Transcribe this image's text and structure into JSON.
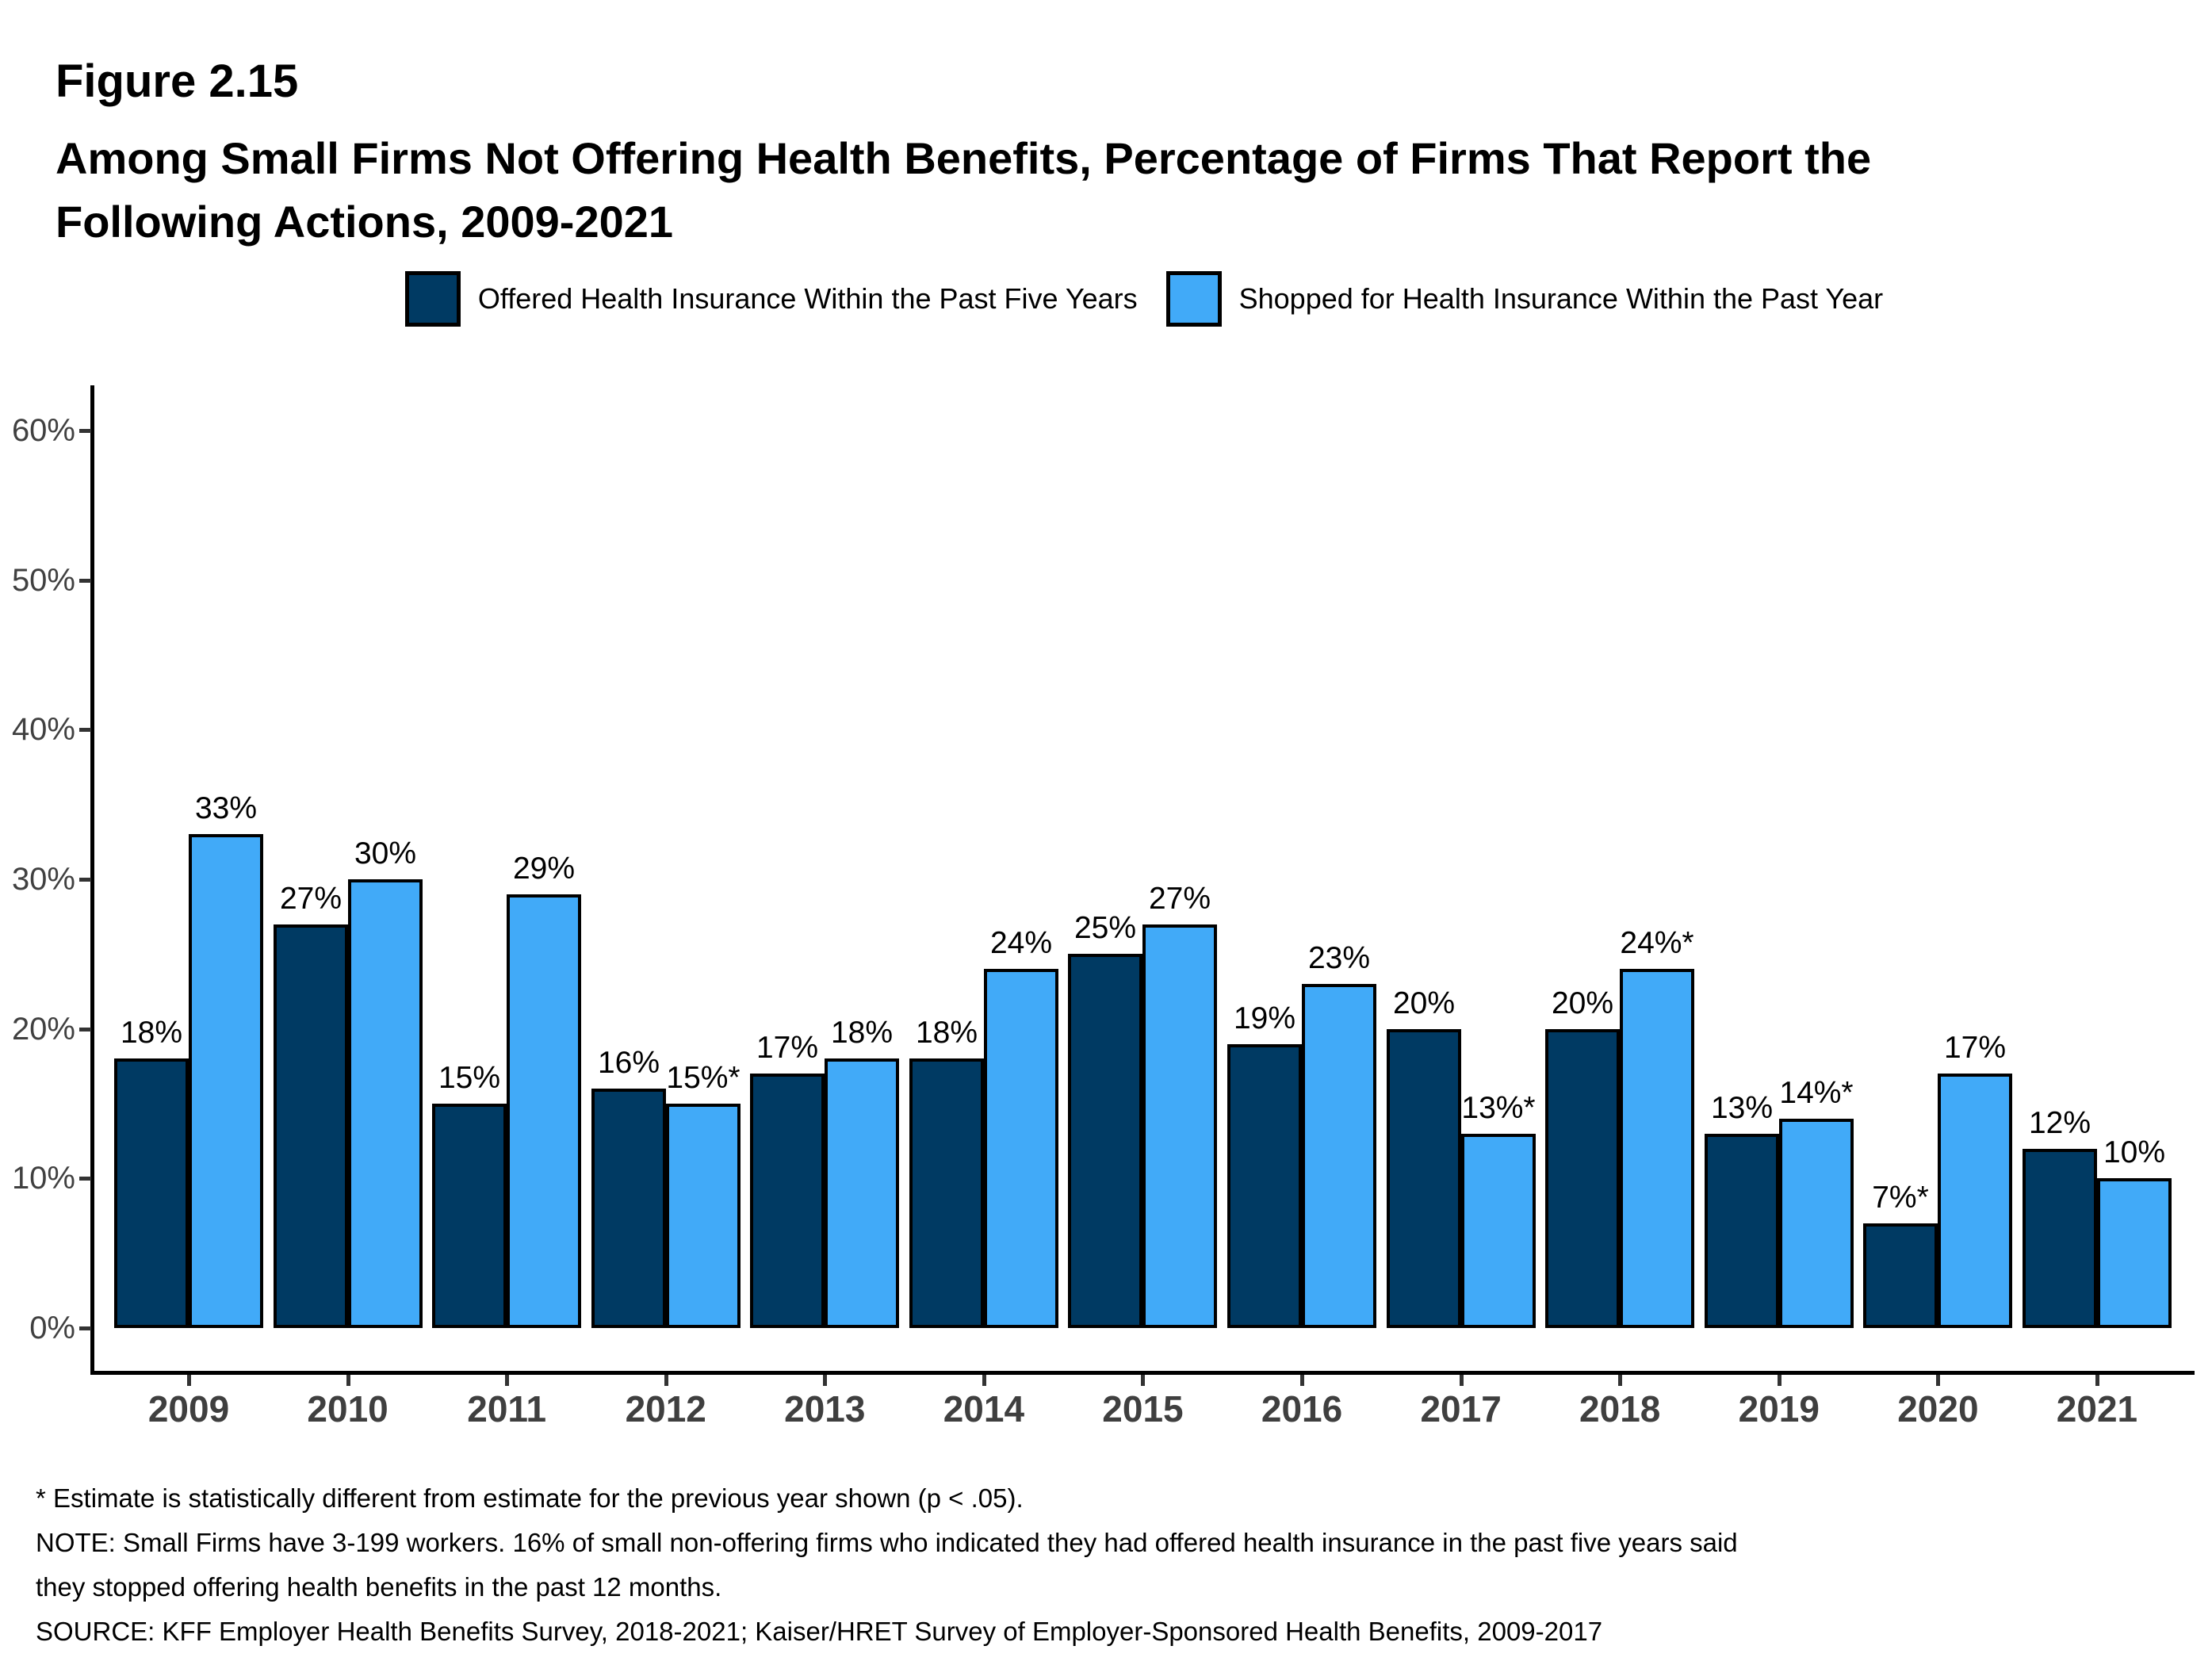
{
  "figure": {
    "label": "Figure 2.15",
    "title_line1": "Among Small Firms Not Offering Health Benefits, Percentage of Firms That Report the",
    "title_line2": "Following Actions, 2009-2021"
  },
  "legend": {
    "items": [
      {
        "label": "Offered Health Insurance Within the Past Five Years",
        "color": "#003A63"
      },
      {
        "label": "Shopped for Health Insurance Within the Past Year",
        "color": "#41AAF8"
      }
    ]
  },
  "chart_data": {
    "type": "bar",
    "title": "Among Small Firms Not Offering Health Benefits, Percentage of Firms That Report the Following Actions, 2009-2021",
    "categories": [
      "2009",
      "2010",
      "2011",
      "2012",
      "2013",
      "2014",
      "2015",
      "2016",
      "2017",
      "2018",
      "2019",
      "2020",
      "2021"
    ],
    "series": [
      {
        "name": "Offered Health Insurance Within the Past Five Years",
        "color": "#003A63",
        "values": [
          18,
          27,
          15,
          16,
          17,
          18,
          25,
          19,
          20,
          20,
          13,
          7,
          12
        ],
        "labels": [
          "18%",
          "27%",
          "15%",
          "16%",
          "17%",
          "18%",
          "25%",
          "19%",
          "20%",
          "20%",
          "13%",
          "7%*",
          "12%"
        ]
      },
      {
        "name": "Shopped for Health Insurance Within the Past Year",
        "color": "#41AAF8",
        "values": [
          33,
          30,
          29,
          15,
          18,
          24,
          27,
          23,
          13,
          24,
          14,
          17,
          10
        ],
        "labels": [
          "33%",
          "30%",
          "29%",
          "15%*",
          "18%",
          "24%",
          "27%",
          "23%",
          "13%*",
          "24%*",
          "14%*",
          "17%",
          "10%"
        ]
      }
    ],
    "xlabel": "",
    "ylabel": "",
    "y_axis": {
      "min": 0,
      "max": 60,
      "tick_step": 10,
      "tick_labels": [
        "0%",
        "10%",
        "20%",
        "30%",
        "40%",
        "50%",
        "60%"
      ]
    },
    "grid": false,
    "legend_position": "top",
    "bar_outline_color": "#000000"
  },
  "footnotes": {
    "asterisk_note": "* Estimate is statistically different from estimate for the previous year shown (p < .05).",
    "note_line1": "NOTE: Small Firms have 3-199 workers. 16% of small non-offering firms who indicated they had offered health insurance in the past five years said",
    "note_line2": "they stopped offering health benefits in the past 12 months.",
    "source": "SOURCE: KFF Employer Health Benefits Survey, 2018-2021; Kaiser/HRET Survey of Employer-Sponsored Health Benefits, 2009-2017"
  },
  "colors": {
    "axis_text": "#404040",
    "year_text": "#3F3F3F",
    "axis_line": "#000000",
    "background": "#FFFFFF"
  }
}
